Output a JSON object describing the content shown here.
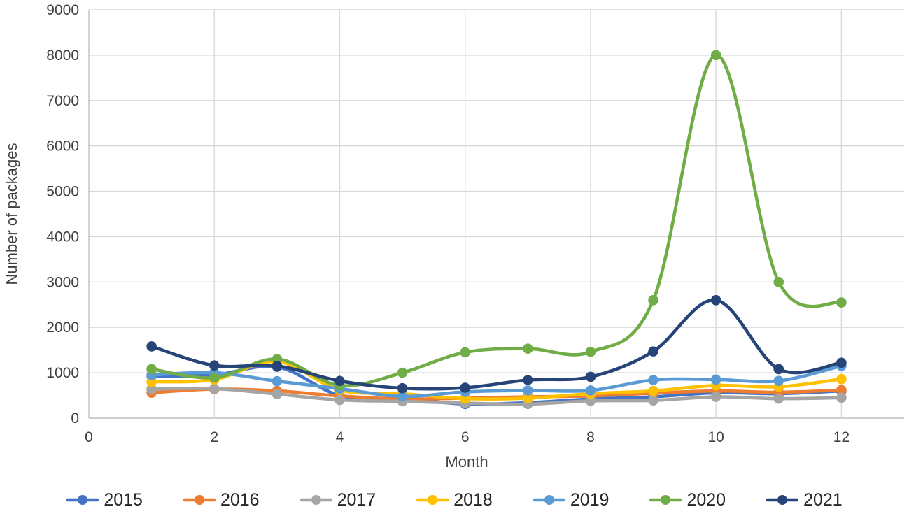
{
  "chart_data": {
    "type": "line",
    "title": "",
    "xlabel": "Month",
    "ylabel": "Number of packages",
    "x": [
      1,
      2,
      3,
      4,
      5,
      6,
      7,
      8,
      9,
      10,
      11,
      12
    ],
    "xlim": [
      0,
      13
    ],
    "ylim": [
      0,
      9000
    ],
    "xticks": [
      0,
      2,
      4,
      6,
      8,
      10,
      12
    ],
    "yticks": [
      0,
      1000,
      2000,
      3000,
      4000,
      5000,
      6000,
      7000,
      8000,
      9000
    ],
    "grid": true,
    "smooth_lines": true,
    "legend_position": "bottom",
    "series": [
      {
        "name": "2015",
        "color": "#4472C4",
        "values": [
          930,
          950,
          1130,
          500,
          430,
          310,
          340,
          420,
          470,
          560,
          540,
          600
        ]
      },
      {
        "name": "2016",
        "color": "#ED7D31",
        "values": [
          560,
          640,
          600,
          490,
          420,
          440,
          470,
          490,
          550,
          600,
          570,
          620
        ]
      },
      {
        "name": "2017",
        "color": "#A5A5A5",
        "values": [
          640,
          650,
          530,
          400,
          370,
          330,
          310,
          380,
          390,
          470,
          430,
          450
        ]
      },
      {
        "name": "2018",
        "color": "#FFC000",
        "values": [
          800,
          850,
          1250,
          620,
          540,
          430,
          440,
          540,
          600,
          720,
          690,
          860
        ]
      },
      {
        "name": "2019",
        "color": "#5B9BD5",
        "values": [
          950,
          1000,
          815,
          650,
          480,
          580,
          610,
          610,
          840,
          850,
          820,
          1150
        ]
      },
      {
        "name": "2020",
        "color": "#70AD47",
        "values": [
          1080,
          890,
          1300,
          720,
          1000,
          1450,
          1530,
          1460,
          2600,
          8000,
          3000,
          2550
        ]
      },
      {
        "name": "2021",
        "color": "#264478",
        "values": [
          1580,
          1160,
          1150,
          820,
          660,
          670,
          840,
          910,
          1470,
          2600,
          1080,
          1220
        ]
      }
    ],
    "colors": {
      "gridline": "#D9D9D9",
      "axis_line": "#BFBFBF",
      "tick_text": "#404040"
    }
  }
}
